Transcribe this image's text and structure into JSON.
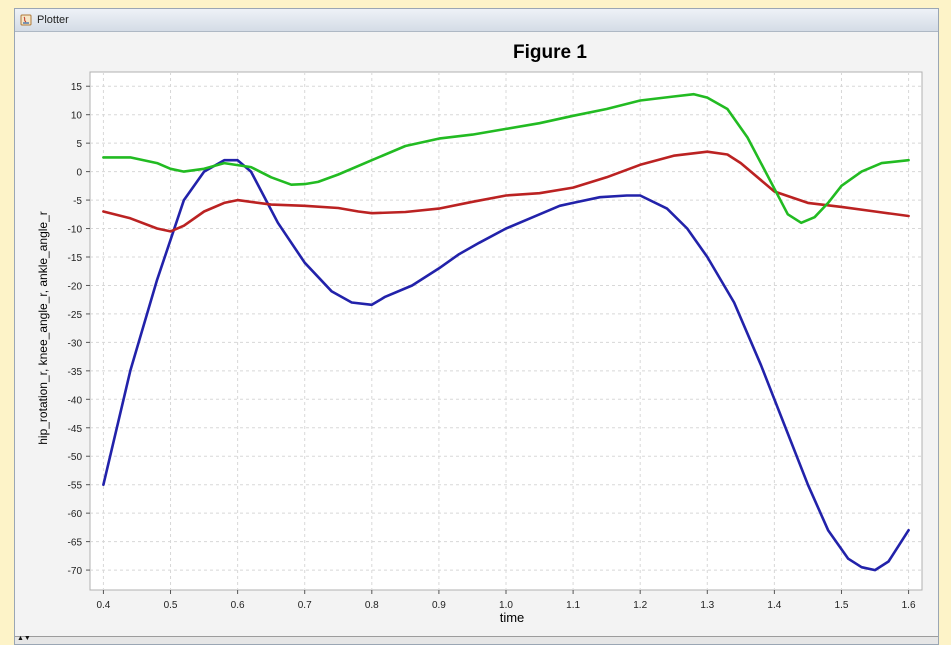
{
  "window": {
    "title": "Plotter",
    "icon": "java-app-icon"
  },
  "colors": {
    "page_background": "#fdf3c8",
    "plot_background": "#ffffff",
    "grid": "#d8d8d8",
    "hip_rotation": "#2222aa",
    "knee_angle": "#bb2222",
    "ankle_angle": "#22bb22"
  },
  "chart_data": {
    "type": "line",
    "title": "Figure 1",
    "xlabel": "time",
    "ylabel": "hip_rotation_r, knee_angle_r, ankle_angle_r",
    "xlim": [
      0.38,
      1.62
    ],
    "ylim": [
      -73.5,
      17.5
    ],
    "x_ticks": [
      0.4,
      0.5,
      0.6,
      0.7,
      0.8,
      0.9,
      1.0,
      1.1,
      1.2,
      1.3,
      1.4,
      1.5,
      1.6
    ],
    "x_tick_labels": [
      "0.4",
      "0.5",
      "0.6",
      "0.7",
      "0.8",
      "0.9",
      "1.0",
      "1.1",
      "1.2",
      "1.3",
      "1.4",
      "1.5",
      "1.6"
    ],
    "y_ticks": [
      15,
      10,
      5,
      0,
      -5,
      -10,
      -15,
      -20,
      -25,
      -30,
      -35,
      -40,
      -45,
      -50,
      -55,
      -60,
      -65,
      -70
    ],
    "y_tick_labels": [
      "15",
      "10",
      "5",
      "0",
      "-5",
      "-10",
      "-15",
      "-20",
      "-25",
      "-30",
      "-35",
      "-40",
      "-45",
      "-50",
      "-55",
      "-60",
      "-65",
      "-70"
    ],
    "grid": true,
    "series": [
      {
        "color": "#2222aa",
        "x": [
          0.4,
          0.44,
          0.48,
          0.52,
          0.55,
          0.58,
          0.6,
          0.62,
          0.66,
          0.7,
          0.74,
          0.77,
          0.8,
          0.82,
          0.86,
          0.9,
          0.93,
          0.96,
          1.0,
          1.04,
          1.08,
          1.1,
          1.14,
          1.18,
          1.2,
          1.24,
          1.27,
          1.3,
          1.34,
          1.38,
          1.42,
          1.45,
          1.48,
          1.51,
          1.53,
          1.55,
          1.57,
          1.6
        ],
        "y": [
          -55,
          -35,
          -19,
          -5,
          0,
          2,
          2,
          0,
          -9,
          -16,
          -21,
          -23,
          -23.4,
          -22,
          -20,
          -17,
          -14.5,
          -12.5,
          -10,
          -8,
          -6,
          -5.5,
          -4.5,
          -4.2,
          -4.2,
          -6.5,
          -10,
          -15,
          -23,
          -34,
          -46,
          -55,
          -63,
          -68,
          -69.5,
          -70,
          -68.5,
          -63
        ]
      },
      {
        "color": "#bb2222",
        "x": [
          0.4,
          0.44,
          0.48,
          0.5,
          0.52,
          0.55,
          0.58,
          0.6,
          0.65,
          0.7,
          0.75,
          0.78,
          0.8,
          0.85,
          0.9,
          0.95,
          1.0,
          1.05,
          1.1,
          1.15,
          1.2,
          1.25,
          1.3,
          1.33,
          1.35,
          1.4,
          1.45,
          1.5,
          1.55,
          1.6
        ],
        "y": [
          -7,
          -8.2,
          -10,
          -10.5,
          -9.5,
          -7,
          -5.5,
          -5,
          -5.8,
          -6,
          -6.4,
          -7,
          -7.3,
          -7.1,
          -6.5,
          -5.3,
          -4.2,
          -3.8,
          -2.8,
          -1,
          1.2,
          2.8,
          3.5,
          3,
          1.5,
          -3.5,
          -5.5,
          -6.2,
          -7,
          -7.8
        ]
      },
      {
        "color": "#22bb22",
        "x": [
          0.4,
          0.44,
          0.48,
          0.5,
          0.52,
          0.55,
          0.58,
          0.62,
          0.65,
          0.68,
          0.7,
          0.72,
          0.75,
          0.8,
          0.85,
          0.9,
          0.95,
          1.0,
          1.05,
          1.1,
          1.15,
          1.2,
          1.25,
          1.28,
          1.3,
          1.33,
          1.36,
          1.4,
          1.42,
          1.44,
          1.46,
          1.48,
          1.5,
          1.53,
          1.56,
          1.6
        ],
        "y": [
          2.5,
          2.5,
          1.5,
          0.5,
          0,
          0.5,
          1.5,
          0.8,
          -1,
          -2.3,
          -2.2,
          -1.8,
          -0.5,
          2,
          4.5,
          5.8,
          6.5,
          7.5,
          8.5,
          9.8,
          11,
          12.5,
          13.2,
          13.6,
          13,
          11,
          6,
          -3,
          -7.5,
          -9,
          -8,
          -5.5,
          -2.5,
          0,
          1.5,
          2
        ]
      }
    ]
  }
}
